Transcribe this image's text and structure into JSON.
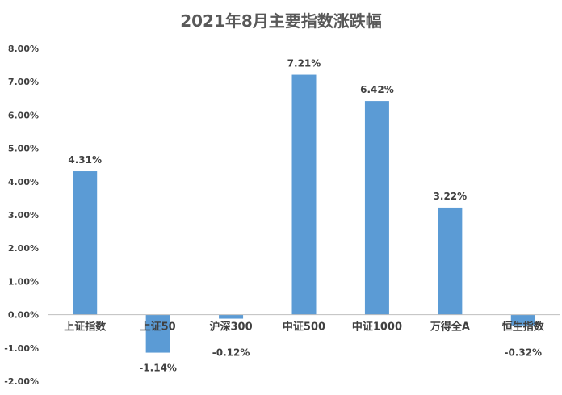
{
  "chart_data": {
    "type": "bar",
    "title": "2021年8月主要指数涨跌幅",
    "categories": [
      "上证指数",
      "上证50",
      "沪深300",
      "中证500",
      "中证1000",
      "万得全A",
      "恒生指数"
    ],
    "values": [
      4.31,
      -1.14,
      -0.12,
      7.21,
      6.42,
      3.22,
      -0.32
    ],
    "data_labels": [
      "4.31%",
      "-1.14%",
      "-0.12%",
      "7.21%",
      "6.42%",
      "3.22%",
      "-0.32%"
    ],
    "ylim": [
      -2,
      8
    ],
    "yticks": [
      8,
      7,
      6,
      5,
      4,
      3,
      2,
      1,
      0,
      -1,
      -2
    ],
    "ytick_labels": [
      "8.00%",
      "7.00%",
      "6.00%",
      "5.00%",
      "4.00%",
      "3.00%",
      "2.00%",
      "1.00%",
      "0.00%",
      "-1.00%",
      "-2.00%"
    ],
    "xlabel": "",
    "ylabel": "",
    "grid": false,
    "legend": "none",
    "colors": {
      "bar": "#5B9BD5",
      "axis": "#bfbfbf",
      "text": "#404040",
      "title": "#595959"
    }
  }
}
